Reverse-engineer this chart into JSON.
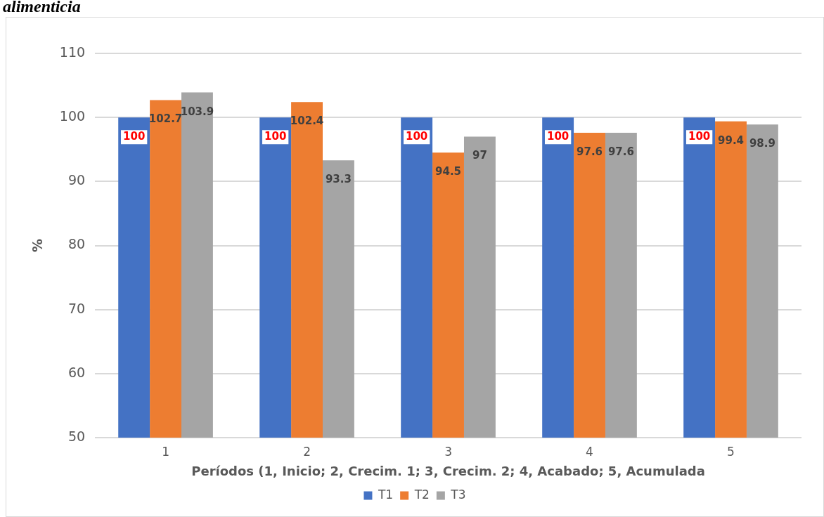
{
  "chart_data": {
    "type": "bar",
    "title": "alimenticia",
    "xlabel": "Períodos (1, Inicio; 2, Crecim. 1; 3, Crecim. 2; 4, Acabado; 5, Acumulada",
    "ylabel": "%",
    "categories": [
      "1",
      "2",
      "3",
      "4",
      "5"
    ],
    "series": [
      {
        "name": "T1",
        "color": "#4472c4",
        "values": [
          100,
          100,
          100,
          100,
          100
        ]
      },
      {
        "name": "T2",
        "color": "#ed7d31",
        "values": [
          102.7,
          102.4,
          94.5,
          97.6,
          99.4
        ]
      },
      {
        "name": "T3",
        "color": "#a5a5a5",
        "values": [
          103.9,
          93.3,
          97,
          97.6,
          98.9
        ]
      }
    ],
    "ylim": [
      50,
      110
    ],
    "yticks": [
      50,
      60,
      70,
      80,
      90,
      100,
      110
    ],
    "grid": "y",
    "legend": "bottom",
    "data_labels": true
  }
}
